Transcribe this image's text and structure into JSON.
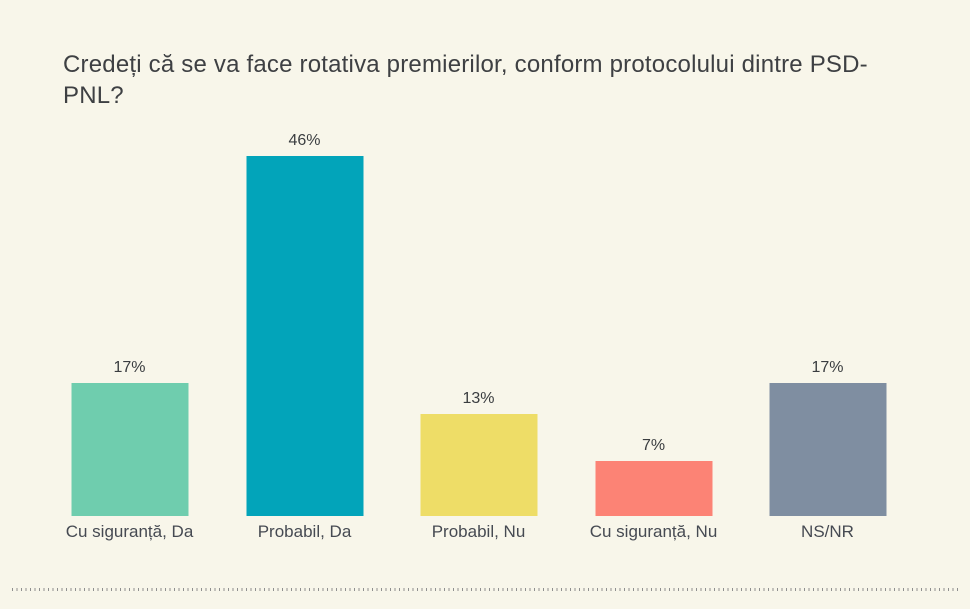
{
  "page": {
    "background_color": "#f8f6ea"
  },
  "chart_data": {
    "type": "bar",
    "title": "Credeți că se va face rotativa premierilor, conform protocolului dintre PSD-PNL?",
    "categories": [
      "Cu siguranță, Da",
      "Probabil, Da",
      "Probabil, Nu",
      "Cu siguranță, Nu",
      "NS/NR"
    ],
    "values": [
      17,
      46,
      13,
      7,
      17
    ],
    "value_labels": [
      "17%",
      "46%",
      "13%",
      "7%",
      "17%"
    ],
    "bar_colors": [
      "#6fcdae",
      "#02a4ba",
      "#eedd67",
      "#fc8375",
      "#7f8ea1"
    ],
    "xlabel": "",
    "ylabel": "",
    "ylim": [
      0,
      50
    ],
    "grid": false,
    "legend": "none",
    "value_suffix": "%",
    "orientation": "vertical"
  },
  "divider": {
    "style": "dotted",
    "color": "#8f8f8f"
  },
  "text_colors": {
    "title": "#3e4043",
    "value_label": "#3a3d40",
    "category_label": "#464a52"
  }
}
